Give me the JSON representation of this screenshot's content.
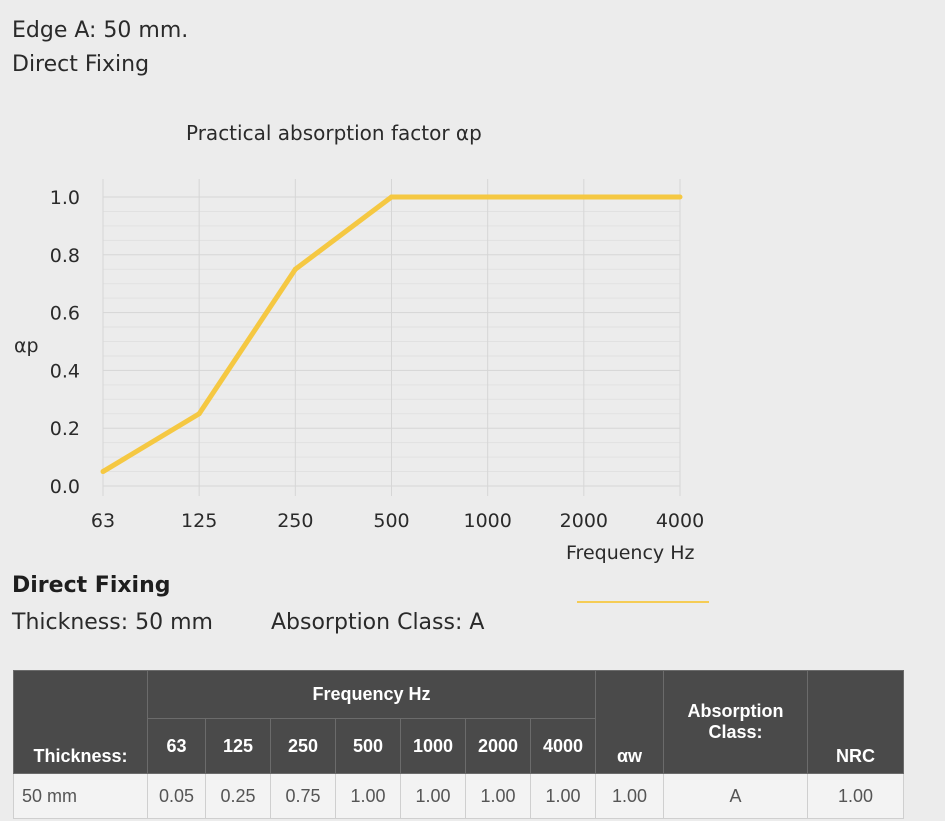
{
  "header": {
    "title": "Edge A: 50 mm.",
    "subtitle": "Direct Fixing"
  },
  "chart_data": {
    "type": "line",
    "title": "Practical absorption factor αp",
    "xlabel": "Frequency Hz",
    "ylabel": "αp",
    "categories": [
      "63",
      "125",
      "250",
      "500",
      "1000",
      "2000",
      "4000"
    ],
    "series": [
      {
        "values": [
          0.05,
          0.25,
          0.75,
          1.0,
          1.0,
          1.0,
          1.0
        ],
        "color": "#f5c842"
      }
    ],
    "ylim": [
      0,
      1.0
    ],
    "yticks": [
      "0.0",
      "0.2",
      "0.4",
      "0.6",
      "0.8",
      "1.0"
    ],
    "grid": true
  },
  "series_info": {
    "heading": "Direct Fixing",
    "thickness": "Thickness: 50 mm",
    "absorption_class": "Absorption Class: A"
  },
  "table": {
    "group_header": "Frequency Hz",
    "col_thickness": "Thickness:",
    "freqs": [
      "63",
      "125",
      "250",
      "500",
      "1000",
      "2000",
      "4000"
    ],
    "col_aw": "αw",
    "col_class": "Absorption Class:",
    "col_nrc": "NRC",
    "row": {
      "thickness": "50 mm",
      "values": [
        "0.05",
        "0.25",
        "0.75",
        "1.00",
        "1.00",
        "1.00",
        "1.00"
      ],
      "aw": "1.00",
      "class": "A",
      "nrc": "1.00"
    }
  }
}
